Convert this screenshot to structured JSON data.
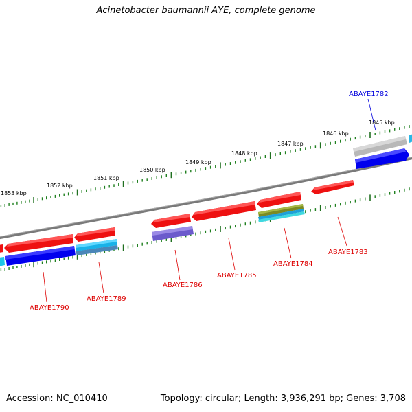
{
  "title": "Acinetobacter baumannii AYE, complete genome",
  "footer": {
    "accession": "Accession: NC_010410",
    "stats": "Topology: circular; Length: 3,936,291 bp; Genes: 3,708"
  },
  "colors": {
    "backbone": "#808080",
    "tick_major": "#207020",
    "tick_minor": "#208020",
    "label_red": "#dd0000",
    "label_blue": "#0000dd"
  },
  "ticks": [
    {
      "label": "1845 kbp"
    },
    {
      "label": "1846 kbp"
    },
    {
      "label": "1847 kbp"
    },
    {
      "label": "1848 kbp"
    },
    {
      "label": "1849 kbp"
    },
    {
      "label": "1850 kbp"
    },
    {
      "label": "1851 kbp"
    },
    {
      "label": "1852 kbp"
    },
    {
      "label": "1853 kbp"
    }
  ],
  "gene_labels": [
    {
      "text": "ABAYE1782",
      "color": "blue"
    },
    {
      "text": "ABAYE1783",
      "color": "red"
    },
    {
      "text": "ABAYE1784",
      "color": "red"
    },
    {
      "text": "ABAYE1785",
      "color": "red"
    },
    {
      "text": "ABAYE1786",
      "color": "red"
    },
    {
      "text": "ABAYE1789",
      "color": "red"
    },
    {
      "text": "ABAYE1790",
      "color": "red"
    }
  ]
}
